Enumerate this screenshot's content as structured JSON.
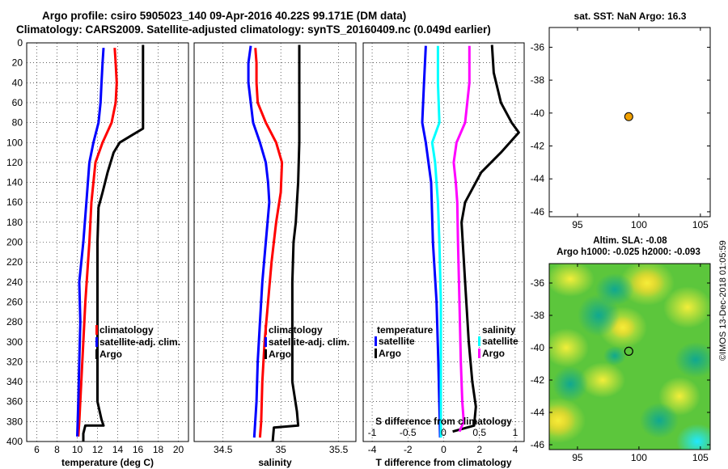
{
  "title": {
    "line1": "Argo profile: csiro 5905023_140 09-Apr-2016 40.22S 99.171E (DM data)",
    "line2": "Climatology: CARS2009. Satellite-adjusted climatology: synTS_20160409.nc (0.049d earlier)"
  },
  "colors": {
    "climatology": "#ff0000",
    "satellite": "#0000ff",
    "argo": "#000000",
    "s_sat": "#00ffff",
    "s_clim": "#ff00ff",
    "dot": "#f0a000"
  },
  "chart_data": [
    {
      "id": "temperature",
      "type": "line",
      "xlabel": "temperature (deg C)",
      "xlim": [
        5,
        21
      ],
      "xticks": [
        6,
        8,
        10,
        12,
        14,
        16,
        18,
        20
      ],
      "ylim": [
        0,
        400
      ],
      "yticks": [
        0,
        20,
        40,
        60,
        80,
        100,
        120,
        140,
        160,
        180,
        200,
        220,
        240,
        260,
        280,
        300,
        320,
        340,
        360,
        380,
        400
      ],
      "legend": [
        "climatology",
        "satellite-adj. clim.",
        "Argo"
      ],
      "series": [
        {
          "name": "climatology",
          "color": "#ff0000",
          "points": [
            [
              13.7,
              5
            ],
            [
              13.8,
              20
            ],
            [
              13.9,
              40
            ],
            [
              13.8,
              60
            ],
            [
              13.4,
              80
            ],
            [
              12.5,
              100
            ],
            [
              11.8,
              120
            ],
            [
              11.4,
              160
            ],
            [
              11.2,
              200
            ],
            [
              10.8,
              260
            ],
            [
              10.6,
              300
            ],
            [
              10.4,
              340
            ],
            [
              10.2,
              380
            ],
            [
              10.1,
              395
            ]
          ]
        },
        {
          "name": "satellite-adj. clim.",
          "color": "#0000ff",
          "points": [
            [
              12.6,
              5
            ],
            [
              12.5,
              20
            ],
            [
              12.4,
              40
            ],
            [
              12.3,
              60
            ],
            [
              12.1,
              80
            ],
            [
              11.6,
              100
            ],
            [
              11.2,
              120
            ],
            [
              10.9,
              160
            ],
            [
              10.6,
              200
            ],
            [
              10.2,
              240
            ],
            [
              10.3,
              280
            ],
            [
              10.2,
              320
            ],
            [
              10.1,
              360
            ],
            [
              10.0,
              395
            ]
          ]
        },
        {
          "name": "Argo",
          "color": "#000000",
          "points": [
            [
              16.5,
              2
            ],
            [
              16.5,
              40
            ],
            [
              16.5,
              86
            ],
            [
              15.5,
              92
            ],
            [
              14.2,
              100
            ],
            [
              13.6,
              110
            ],
            [
              13.0,
              130
            ],
            [
              12.5,
              150
            ],
            [
              12.1,
              165
            ],
            [
              12.0,
              200
            ],
            [
              12.0,
              260
            ],
            [
              12.0,
              320
            ],
            [
              12.0,
              360
            ],
            [
              12.4,
              378
            ],
            [
              12.6,
              384
            ],
            [
              10.8,
              384
            ],
            [
              10.6,
              392
            ],
            [
              10.6,
              400
            ]
          ]
        }
      ]
    },
    {
      "id": "salinity",
      "type": "line",
      "xlabel": "salinity",
      "xlim": [
        34.25,
        35.65
      ],
      "xticks": [
        34.5,
        35,
        35.5
      ],
      "ylim": [
        0,
        400
      ],
      "legend": [
        "climatology",
        "satellite-adj. clim.",
        "Argo"
      ],
      "series": [
        {
          "name": "climatology",
          "color": "#ff0000",
          "points": [
            [
              34.78,
              5
            ],
            [
              34.79,
              20
            ],
            [
              34.79,
              40
            ],
            [
              34.8,
              60
            ],
            [
              34.87,
              80
            ],
            [
              34.96,
              100
            ],
            [
              35.01,
              120
            ],
            [
              35.0,
              150
            ],
            [
              34.96,
              180
            ],
            [
              34.92,
              220
            ],
            [
              34.89,
              260
            ],
            [
              34.86,
              300
            ],
            [
              34.84,
              340
            ],
            [
              34.83,
              380
            ],
            [
              34.82,
              396
            ]
          ]
        },
        {
          "name": "satellite-adj. clim.",
          "color": "#0000ff",
          "points": [
            [
              34.74,
              3
            ],
            [
              34.72,
              20
            ],
            [
              34.72,
              40
            ],
            [
              34.74,
              60
            ],
            [
              34.76,
              80
            ],
            [
              34.82,
              100
            ],
            [
              34.87,
              120
            ],
            [
              34.89,
              140
            ],
            [
              34.9,
              160
            ],
            [
              34.87,
              200
            ],
            [
              34.84,
              240
            ],
            [
              34.82,
              280
            ],
            [
              34.8,
              320
            ],
            [
              34.79,
              360
            ],
            [
              34.77,
              396
            ]
          ]
        },
        {
          "name": "Argo",
          "color": "#000000",
          "points": [
            [
              35.16,
              2
            ],
            [
              35.16,
              60
            ],
            [
              35.16,
              100
            ],
            [
              35.15,
              140
            ],
            [
              35.14,
              160
            ],
            [
              35.13,
              180
            ],
            [
              35.11,
              200
            ],
            [
              35.1,
              240
            ],
            [
              35.1,
              300
            ],
            [
              35.1,
              340
            ],
            [
              35.14,
              370
            ],
            [
              35.15,
              384
            ],
            [
              34.94,
              386
            ],
            [
              34.93,
              400
            ]
          ]
        }
      ]
    },
    {
      "id": "difference",
      "type": "line",
      "xlabel": "T difference from climatology",
      "x2label": "S difference from climatology",
      "xlim": [
        -4.5,
        4.5
      ],
      "xticks": [
        -4,
        -2,
        0,
        2,
        4
      ],
      "x2ticks": [
        "-1",
        "-0.5",
        "0",
        "0.5",
        "1"
      ],
      "ylim": [
        0,
        400
      ],
      "legend_temperature": {
        "header": "temperature",
        "items": [
          "satellite",
          "Argo"
        ]
      },
      "legend_salinity": {
        "header": "salinity",
        "items": [
          "satellite",
          "Argo"
        ]
      },
      "series": [
        {
          "name": "T satellite",
          "color": "#0000ff",
          "points": [
            [
              -1.0,
              3
            ],
            [
              -1.1,
              40
            ],
            [
              -1.2,
              80
            ],
            [
              -1.0,
              100
            ],
            [
              -0.7,
              140
            ],
            [
              -0.6,
              200
            ],
            [
              -0.4,
              260
            ],
            [
              -0.3,
              320
            ],
            [
              -0.2,
              396
            ]
          ]
        },
        {
          "name": "T Argo",
          "color": "#000000",
          "points": [
            [
              2.7,
              2
            ],
            [
              2.8,
              30
            ],
            [
              3.2,
              60
            ],
            [
              3.8,
              80
            ],
            [
              4.2,
              90
            ],
            [
              3.2,
              110
            ],
            [
              2.1,
              130
            ],
            [
              1.2,
              160
            ],
            [
              1.0,
              180
            ],
            [
              1.2,
              240
            ],
            [
              1.4,
              300
            ],
            [
              1.6,
              340
            ],
            [
              1.8,
              365
            ],
            [
              1.7,
              384
            ],
            [
              0.5,
              390
            ]
          ]
        },
        {
          "name": "S satellite",
          "color": "#00ffff",
          "points": [
            [
              -0.08,
              3
            ],
            [
              -0.08,
              40
            ],
            [
              -0.06,
              80
            ],
            [
              -0.16,
              100
            ],
            [
              -0.12,
              120
            ],
            [
              -0.08,
              160
            ],
            [
              -0.06,
              200
            ],
            [
              -0.04,
              260
            ],
            [
              -0.04,
              320
            ],
            [
              -0.04,
              396
            ]
          ]
        },
        {
          "name": "S Argo",
          "color": "#ff00ff",
          "points": [
            [
              0.36,
              3
            ],
            [
              0.36,
              40
            ],
            [
              0.3,
              80
            ],
            [
              0.18,
              100
            ],
            [
              0.14,
              120
            ],
            [
              0.17,
              140
            ],
            [
              0.19,
              160
            ],
            [
              0.2,
              200
            ],
            [
              0.22,
              260
            ],
            [
              0.24,
              320
            ],
            [
              0.26,
              360
            ],
            [
              0.28,
              380
            ],
            [
              0.22,
              390
            ]
          ]
        }
      ]
    }
  ],
  "map_sst": {
    "title": "sat. SST: NaN Argo: 16.3",
    "xticks": [
      "95",
      "100",
      "105"
    ],
    "yticks": [
      "-36",
      "-38",
      "-40",
      "-42",
      "-44",
      "-46"
    ],
    "argo_lon": 99.171,
    "argo_lat": -40.22,
    "xlim": [
      92.7,
      105.8
    ],
    "ylim": [
      -46.3,
      -34.8
    ]
  },
  "map_sla": {
    "title1": "Altim. SLA: -0.08",
    "title2": "Argo h1000: -0.025 h2000: -0.093",
    "xticks": [
      "95",
      "100",
      "105"
    ],
    "yticks": [
      "-36",
      "-38",
      "-40",
      "-42",
      "-44",
      "-46"
    ]
  },
  "stamp": "©IMOS 13-Dec-2018 01:05:59"
}
